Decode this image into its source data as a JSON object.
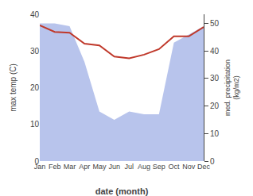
{
  "chart_data": {
    "type": "line",
    "categories": [
      "Jan",
      "Feb",
      "Mar",
      "Apr",
      "May",
      "Jun",
      "Jul",
      "Aug",
      "Sep",
      "Oct",
      "Nov",
      "Dec"
    ],
    "xlabel": "date (month)",
    "ylabel": "max temp (C)",
    "y2label": "med. precipitation\n(kg/m2)",
    "series": [
      {
        "type": "area",
        "axis": "y2",
        "color": "#b8c4ec",
        "values": [
          50,
          50,
          49,
          36,
          18,
          15,
          18,
          17,
          17,
          43,
          46,
          49
        ]
      },
      {
        "type": "line",
        "color": "#c0392b",
        "values": [
          37.0,
          35.2,
          35.0,
          32.0,
          31.5,
          28.5,
          28.0,
          29.0,
          30.5,
          34.0,
          34.0,
          36.5
        ]
      }
    ],
    "ylim": [
      0,
      40
    ],
    "yticks": [
      0,
      10,
      20,
      30,
      40
    ],
    "y2lim": [
      0,
      53.33
    ],
    "y2ticks": [
      0,
      10,
      20,
      30,
      40,
      50
    ],
    "grid": false
  }
}
